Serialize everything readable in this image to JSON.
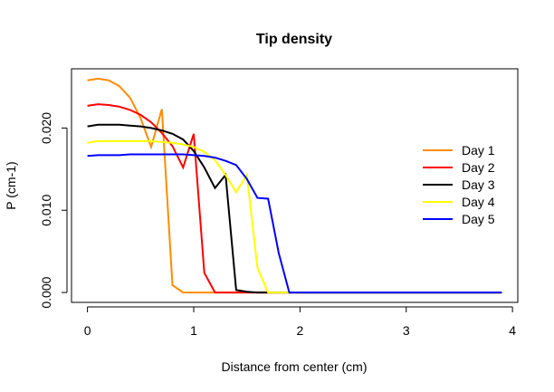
{
  "chart_data": {
    "type": "line",
    "title": "Tip density",
    "xlabel": "Distance from center (cm)",
    "ylabel": "P (cm-1)",
    "xlim": [
      -0.15,
      4.05
    ],
    "ylim": [
      -0.0012,
      0.0272
    ],
    "xticks": [
      0,
      1,
      2,
      3,
      4
    ],
    "xtick_labels": [
      "0",
      "1",
      "2",
      "3",
      "4"
    ],
    "yticks": [
      0,
      0.01,
      0.02
    ],
    "ytick_labels": [
      "0.000",
      "0.010",
      "0.020"
    ],
    "grid": false,
    "legend_position": "right",
    "x": [
      0,
      0.1,
      0.2,
      0.3,
      0.4,
      0.5,
      0.6,
      0.7,
      0.8,
      0.9,
      1.0,
      1.1,
      1.2,
      1.3,
      1.4,
      1.5,
      1.6,
      1.7,
      1.8,
      1.9,
      2.0,
      2.1,
      2.2,
      2.3,
      2.4,
      2.5,
      2.6,
      2.7,
      2.8,
      2.9,
      3.0,
      3.1,
      3.2,
      3.3,
      3.4,
      3.5,
      3.6,
      3.7,
      3.8,
      3.9
    ],
    "series": [
      {
        "name": "Day 1",
        "color": "#ff8c00",
        "values": [
          0.0258,
          0.026,
          0.0258,
          0.0251,
          0.0237,
          0.0212,
          0.0177,
          0.0223,
          0.0009,
          0,
          0,
          0,
          0,
          0,
          0,
          0,
          0,
          0,
          0,
          0,
          0,
          0,
          0,
          0,
          0,
          0,
          0,
          0,
          0,
          0,
          0,
          0,
          0,
          0,
          0,
          0,
          0,
          0,
          0,
          0
        ]
      },
      {
        "name": "Day 2",
        "color": "#ff0000",
        "values": [
          0.0227,
          0.0229,
          0.0228,
          0.0226,
          0.0222,
          0.0216,
          0.0207,
          0.0194,
          0.0178,
          0.0152,
          0.0193,
          0.0024,
          0,
          0,
          0,
          0,
          0,
          0,
          0,
          0,
          0,
          0,
          0,
          0,
          0,
          0,
          0,
          0,
          0,
          0,
          0,
          0,
          0,
          0,
          0,
          0,
          0,
          0,
          0,
          0
        ]
      },
      {
        "name": "Day 3",
        "color": "#000000",
        "values": [
          0.0202,
          0.0204,
          0.0204,
          0.0204,
          0.0203,
          0.0202,
          0.02,
          0.0197,
          0.0193,
          0.0186,
          0.0172,
          0.0152,
          0.0127,
          0.0143,
          0.0003,
          0.0001,
          0,
          0,
          0,
          0,
          0,
          0,
          0,
          0,
          0,
          0,
          0,
          0,
          0,
          0,
          0,
          0,
          0,
          0,
          0,
          0,
          0,
          0,
          0,
          0
        ]
      },
      {
        "name": "Day 4",
        "color": "#ffff00",
        "values": [
          0.0182,
          0.0184,
          0.0184,
          0.0184,
          0.0184,
          0.0184,
          0.0184,
          0.0183,
          0.0182,
          0.018,
          0.0177,
          0.0171,
          0.0161,
          0.0143,
          0.0122,
          0.0143,
          0.003,
          0,
          0,
          0,
          0,
          0,
          0,
          0,
          0,
          0,
          0,
          0,
          0,
          0,
          0,
          0,
          0,
          0,
          0,
          0,
          0,
          0,
          0,
          0
        ]
      },
      {
        "name": "Day 5",
        "color": "#0000ff",
        "values": [
          0.0166,
          0.0167,
          0.0167,
          0.0167,
          0.0168,
          0.0168,
          0.0168,
          0.0168,
          0.0168,
          0.0168,
          0.0167,
          0.0166,
          0.0164,
          0.016,
          0.0155,
          0.0138,
          0.0115,
          0.0114,
          0.0048,
          0,
          0,
          0,
          0,
          0,
          0,
          0,
          0,
          0,
          0,
          0,
          0,
          0,
          0,
          0,
          0,
          0,
          0,
          0,
          0,
          0
        ]
      }
    ]
  }
}
